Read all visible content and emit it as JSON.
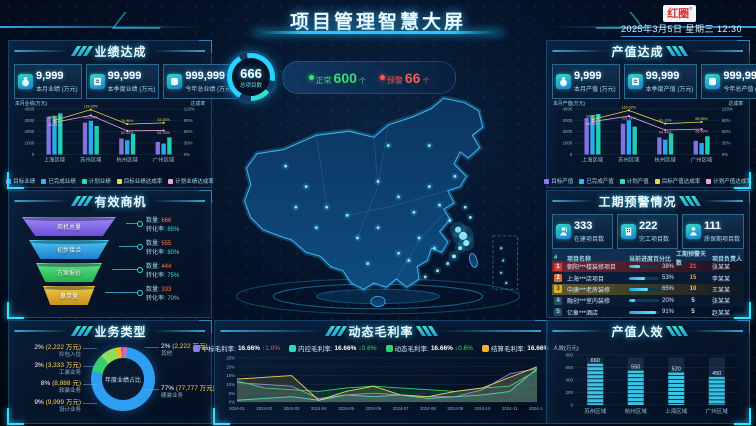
{
  "header": {
    "title": "项目管理智慧大屏",
    "logo": "红圈",
    "logo_sup": "°",
    "datetime": "2025年3月5日 星期三 12:30"
  },
  "summary": {
    "total": "666",
    "total_label": "总项目数",
    "normal_label": "正常",
    "normal_value": "600",
    "normal_unit": "个",
    "warn_label": "预警",
    "warn_value": "66",
    "warn_unit": "个"
  },
  "performance": {
    "title": "业绩达成",
    "stats": [
      {
        "icon": "money-bag-icon",
        "value": "9,999",
        "label": "本月业绩 (万元)"
      },
      {
        "icon": "invoice-icon",
        "value": "99,999",
        "label": "本季度业绩 (万元)"
      },
      {
        "icon": "coin-icon",
        "value": "999,999",
        "label": "今年总业绩 (万元)"
      }
    ],
    "chart": {
      "type": "bar-line",
      "ylabel": "本月业绩(万元)",
      "y2label": "达成率",
      "yticks": [
        "0",
        "1000",
        "2000",
        "3000",
        "4000"
      ],
      "y2ticks": [
        "0%",
        "30%",
        "60%",
        "90%",
        "120%"
      ],
      "ymax": 4000,
      "y2max": 120,
      "categories": [
        "上海区域",
        "苏州区域",
        "杭州区域",
        "广州区域"
      ],
      "bars": [
        {
          "name": "目标业绩",
          "color": "#8d7bf0",
          "values": [
            3300,
            2800,
            1400,
            1100
          ]
        },
        {
          "name": "已完成业绩",
          "color": "#2fb6ff",
          "values": [
            3400,
            2950,
            1250,
            950
          ]
        },
        {
          "name": "计划业绩",
          "color": "#1fe0c0",
          "values": [
            3600,
            2500,
            1800,
            1500
          ]
        }
      ],
      "lines": [
        {
          "name": "目标业绩达成率",
          "color": "#e8d44d",
          "values": [
            89.81,
            118.02,
            79.96,
            83.33
          ],
          "labels": [
            "89.81%",
            "118.02%",
            "79.96%",
            "83.33%"
          ]
        },
        {
          "name": "计划业绩达成率",
          "color": "#f2a6d8",
          "values": [
            84.44,
            103.03,
            62.22,
            63.33
          ],
          "labels": [
            "84.44%",
            "103.03%",
            "62.22%",
            "63.33%"
          ]
        }
      ]
    }
  },
  "funnel": {
    "title": "有效商机",
    "qty_label": "数量: ",
    "rate_label": "转化率: ",
    "stages": [
      {
        "label": "商机总量",
        "color": "linear-gradient(180deg,#a08af8,#6b4fd8)",
        "qty": "666",
        "rate": "85%"
      },
      {
        "label": "初步接洽",
        "color": "linear-gradient(180deg,#49c8f0,#1f7fd0)",
        "qty": "555",
        "rate": "80%"
      },
      {
        "label": "方案报价",
        "color": "linear-gradient(180deg,#5fe08a,#22b44e)",
        "qty": "444",
        "rate": "75%"
      },
      {
        "label": "赢单量",
        "color": "linear-gradient(180deg,#f0c84a,#c8921f)",
        "qty": "333",
        "rate": "70%"
      }
    ]
  },
  "business": {
    "title": "业务类型",
    "center_label": "年度业绩占比",
    "slices": [
      {
        "pct": 77,
        "pct_label": "77%",
        "amount": "(77,777 万元)",
        "label": "硬装业务",
        "color": "#2e9df2"
      },
      {
        "pct": 9,
        "pct_label": "9%",
        "amount": "(9,999 万元)",
        "label": "设计业务",
        "color": "#35d06b"
      },
      {
        "pct": 8,
        "pct_label": "8%",
        "amount": "(8,888 元)",
        "label": "软装业务",
        "color": "#8de05a"
      },
      {
        "pct": 3,
        "pct_label": "3%",
        "amount": "(3,333 万元)",
        "label": "工装业务",
        "color": "#f0b429"
      },
      {
        "pct": 2,
        "pct_label": "2%",
        "amount": "(2,222 万元)",
        "label": "拎包入住",
        "color": "#b44fd8"
      },
      {
        "pct": 2,
        "pct_label": "2%",
        "amount": "(2,222 万元)",
        "label": "其他",
        "color": "#f06292"
      }
    ]
  },
  "output": {
    "title": "产值达成",
    "stats": [
      {
        "icon": "money-bag-icon",
        "value": "9,999",
        "label": "本月产值 (万元)"
      },
      {
        "icon": "invoice-icon",
        "value": "99,999",
        "label": "本季度产值 (万元)"
      },
      {
        "icon": "coin-icon",
        "value": "999,999",
        "label": "今年总产值 (万元)"
      }
    ],
    "chart": {
      "type": "bar-line",
      "ylabel": "本月产值(万元)",
      "y2label": "达成率",
      "yticks": [
        "0",
        "1000",
        "2000",
        "3000",
        "4000"
      ],
      "y2ticks": [
        "0%",
        "30%",
        "60%",
        "90%",
        "120%"
      ],
      "ymax": 4000,
      "y2max": 120,
      "categories": [
        "上海区域",
        "苏州区域",
        "杭州区域",
        "广州区域"
      ],
      "bars": [
        {
          "name": "目标产值",
          "color": "#8d7bf0",
          "values": [
            3200,
            2700,
            1500,
            1200
          ]
        },
        {
          "name": "已完成产值",
          "color": "#2fb6ff",
          "values": [
            3450,
            3000,
            1300,
            1000
          ]
        },
        {
          "name": "计划产值",
          "color": "#1fe0c0",
          "values": [
            3550,
            2450,
            1850,
            1600
          ]
        }
      ],
      "lines": [
        {
          "name": "目标产值达成率",
          "color": "#e8d44d",
          "values": [
            92.22,
            116.02,
            81.11,
            85.55
          ],
          "labels": [
            "92.22%",
            "116.02%",
            "81.11%",
            "85.55%"
          ]
        },
        {
          "name": "计划产值达成率",
          "color": "#f2a6d8",
          "values": [
            86.66,
            101.01,
            64.44,
            66.66
          ],
          "labels": [
            "86.66%",
            "101.01%",
            "64.44%",
            "66.66%"
          ]
        }
      ]
    }
  },
  "warning": {
    "title": "工期预警情况",
    "stats": [
      {
        "icon": "worker-icon",
        "value": "333",
        "label": "在建项目数"
      },
      {
        "icon": "building-icon",
        "value": "222",
        "label": "完工项目数"
      },
      {
        "icon": "person-icon",
        "value": "111",
        "label": "质保期项目数"
      }
    ],
    "table": {
      "headers": [
        "#",
        "项目名称",
        "当前进度百分比",
        "工期预警天数",
        "项目负责人"
      ],
      "rows": [
        {
          "rank": "1",
          "name": "朝阳***楼装修项目",
          "progress": 38,
          "progress_label": "38%",
          "days": "21",
          "owner": "张某某",
          "level": "high"
        },
        {
          "rank": "2",
          "name": "上海***店项目",
          "progress": 53,
          "progress_label": "53%",
          "days": "15",
          "owner": "李某某",
          "level": "mid"
        },
        {
          "rank": "3",
          "name": "中庚***老房装修",
          "progress": 65,
          "progress_label": "65%",
          "days": "10",
          "owner": "王某某",
          "level": "low"
        },
        {
          "rank": "4",
          "name": "融创***室内装修",
          "progress": 20,
          "progress_label": "20%",
          "days": "5",
          "owner": "张某某",
          "level": "none"
        },
        {
          "rank": "5",
          "name": "亿象***酒店",
          "progress": 91,
          "progress_label": "91%",
          "days": "5",
          "owner": "赵某某",
          "level": "none"
        }
      ]
    }
  },
  "margin": {
    "title": "动态毛利率",
    "kpis": [
      {
        "label": "中标毛利率:",
        "value": "16.66%",
        "delta": "↑1.0%",
        "dir": "up",
        "color": "#8d7bf0"
      },
      {
        "label": "内控毛利率:",
        "value": "16.66%",
        "delta": "↓0.6%",
        "dir": "dn",
        "color": "#1fe0c0"
      },
      {
        "label": "动态毛利率:",
        "value": "16.66%",
        "delta": "↓0.6%",
        "dir": "dn",
        "color": "#35d06b"
      },
      {
        "label": "结算毛利率:",
        "value": "16.66%",
        "delta": "↑1.0%",
        "dir": "up",
        "color": "#f0b429"
      }
    ],
    "chart": {
      "type": "line",
      "yticks": [
        "0%",
        "5%",
        "10%",
        "15%",
        "20%",
        "25%"
      ],
      "ymax": 25,
      "x": [
        "2024-01",
        "2024-02",
        "2024-03",
        "2024-04",
        "2024-05",
        "2024-06",
        "2024-07",
        "2024-08",
        "2024-09",
        "2024-10",
        "2024-11",
        "2024-12"
      ],
      "series": [
        {
          "name": "中标毛利率",
          "color": "#8d7bf0",
          "values": [
            11,
            10,
            9,
            2,
            4,
            5,
            4,
            3,
            3,
            7,
            16,
            19
          ]
        },
        {
          "name": "内控毛利率",
          "color": "#4dd0e1",
          "values": [
            1,
            2,
            3,
            1,
            4,
            3,
            4,
            2,
            3,
            4,
            6,
            19
          ]
        },
        {
          "name": "动态毛利率",
          "color": "#35d06b",
          "values": [
            12,
            8,
            7,
            6,
            8,
            9,
            8,
            7,
            6,
            8,
            9,
            18
          ]
        },
        {
          "name": "结算毛利率",
          "color": "#e8d44d",
          "values": [
            13,
            14,
            15,
            1,
            6,
            9,
            4,
            3,
            6,
            8,
            14,
            20
          ]
        }
      ]
    }
  },
  "efficiency": {
    "title": "产值人效",
    "chart": {
      "type": "bar",
      "ylabel": "人效(万元)",
      "yticks": [
        "0",
        "200",
        "400",
        "600",
        "800"
      ],
      "ymax": 800,
      "ghost": 760,
      "categories": [
        "苏州区域",
        "杭州区域",
        "上海区域",
        "广州区域"
      ],
      "values": [
        660,
        550,
        520,
        450
      ]
    }
  }
}
